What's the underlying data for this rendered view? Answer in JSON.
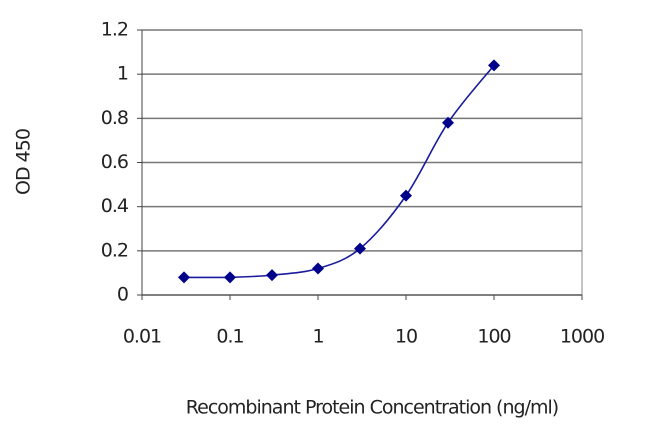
{
  "chart_data": {
    "type": "line",
    "x_label": "Recombinant Protein Concentration (ng/ml)",
    "y_label": "OD 450",
    "x": [
      0.03,
      0.1,
      0.3,
      1,
      3,
      10,
      30,
      100
    ],
    "series": [
      {
        "color": "#1a1a9c",
        "values": [
          0.08,
          0.08,
          0.09,
          0.12,
          0.21,
          0.45,
          0.78,
          1.04
        ]
      }
    ],
    "xlim": [
      0.01,
      1000
    ],
    "xticks": [
      0.01,
      0.1,
      1,
      10,
      100,
      1000
    ],
    "x_log": true,
    "ylim": [
      0,
      1.2
    ],
    "yticks": [
      0,
      0.2,
      0.4,
      0.6,
      0.8,
      1,
      1.2
    ],
    "grid": true
  }
}
